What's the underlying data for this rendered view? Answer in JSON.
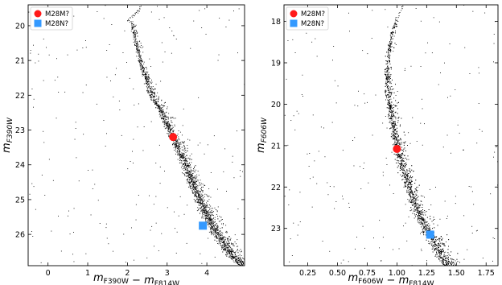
{
  "chart_data": [
    {
      "type": "scatter",
      "xlabel": {
        "main": "m",
        "parts": [
          {
            "sub": "F390W"
          },
          {
            "text": " − m"
          },
          {
            "sub": "F814W"
          }
        ]
      },
      "ylabel": {
        "main": "m",
        "sub": "F390W"
      },
      "xlim": [
        -0.5,
        4.95
      ],
      "ylim": [
        26.9,
        19.4
      ],
      "y_inverted": true,
      "xticks": [
        0,
        1,
        2,
        3,
        4
      ],
      "xtick_labels": [
        "0",
        "1",
        "2",
        "3",
        "4"
      ],
      "yticks": [
        20,
        21,
        22,
        23,
        24,
        25,
        26
      ],
      "ytick_labels": [
        "20",
        "21",
        "22",
        "23",
        "24",
        "25",
        "26"
      ],
      "legend_position": "top-left",
      "legend": [
        {
          "label": "M28M?",
          "marker": "circle",
          "color": "#ff1a1a"
        },
        {
          "label": "M28N?",
          "marker": "square",
          "color": "#3399ff"
        }
      ],
      "series": [
        {
          "name": "M28M?",
          "marker": "circle",
          "color": "#ff1a1a",
          "points": [
            {
              "x": 3.15,
              "y": 23.2
            }
          ]
        },
        {
          "name": "M28N?",
          "marker": "square",
          "color": "#3399ff",
          "points": [
            {
              "x": 3.9,
              "y": 25.75
            }
          ]
        }
      ],
      "background_sequence": {
        "color": "#000000",
        "ridge": [
          [
            2.35,
            19.4
          ],
          [
            2.15,
            19.7
          ],
          [
            2.0,
            19.85
          ],
          [
            2.1,
            19.9
          ],
          [
            2.2,
            20.5
          ],
          [
            2.3,
            21.0
          ],
          [
            2.45,
            21.5
          ],
          [
            2.6,
            22.0
          ],
          [
            2.85,
            22.5
          ],
          [
            3.05,
            23.0
          ],
          [
            3.25,
            23.5
          ],
          [
            3.45,
            24.0
          ],
          [
            3.6,
            24.5
          ],
          [
            3.8,
            25.0
          ],
          [
            4.0,
            25.5
          ],
          [
            4.25,
            26.0
          ],
          [
            4.55,
            26.5
          ],
          [
            4.9,
            26.9
          ]
        ]
      }
    },
    {
      "type": "scatter",
      "xlabel": {
        "main": "m",
        "parts": [
          {
            "sub": "F606W"
          },
          {
            "text": " − m"
          },
          {
            "sub": "F814W"
          }
        ]
      },
      "ylabel": {
        "main": "m",
        "sub": "F606W"
      },
      "xlim": [
        0.05,
        1.85
      ],
      "ylim": [
        23.9,
        17.6
      ],
      "y_inverted": true,
      "xticks": [
        0.25,
        0.5,
        0.75,
        1.0,
        1.25,
        1.5,
        1.75
      ],
      "xtick_labels": [
        "0.25",
        "0.50",
        "0.75",
        "1.00",
        "1.25",
        "1.50",
        "1.75"
      ],
      "yticks": [
        18,
        19,
        20,
        21,
        22,
        23
      ],
      "ytick_labels": [
        "18",
        "19",
        "20",
        "21",
        "22",
        "23"
      ],
      "legend_position": "top-left",
      "legend": [
        {
          "label": "M28M?",
          "marker": "circle",
          "color": "#ff1a1a"
        },
        {
          "label": "M28N?",
          "marker": "square",
          "color": "#3399ff"
        }
      ],
      "series": [
        {
          "name": "M28M?",
          "marker": "circle",
          "color": "#ff1a1a",
          "points": [
            {
              "x": 1.0,
              "y": 21.08
            }
          ]
        },
        {
          "name": "M28N?",
          "marker": "square",
          "color": "#3399ff",
          "points": [
            {
              "x": 1.28,
              "y": 23.15
            }
          ]
        }
      ],
      "background_sequence": {
        "color": "#000000",
        "ridge": [
          [
            1.05,
            17.6
          ],
          [
            1.0,
            17.9
          ],
          [
            0.95,
            18.3
          ],
          [
            0.92,
            18.8
          ],
          [
            0.91,
            19.3
          ],
          [
            0.92,
            19.8
          ],
          [
            0.95,
            20.3
          ],
          [
            0.98,
            20.8
          ],
          [
            1.02,
            21.3
          ],
          [
            1.07,
            21.8
          ],
          [
            1.13,
            22.3
          ],
          [
            1.2,
            22.8
          ],
          [
            1.3,
            23.3
          ],
          [
            1.42,
            23.9
          ]
        ]
      }
    }
  ]
}
